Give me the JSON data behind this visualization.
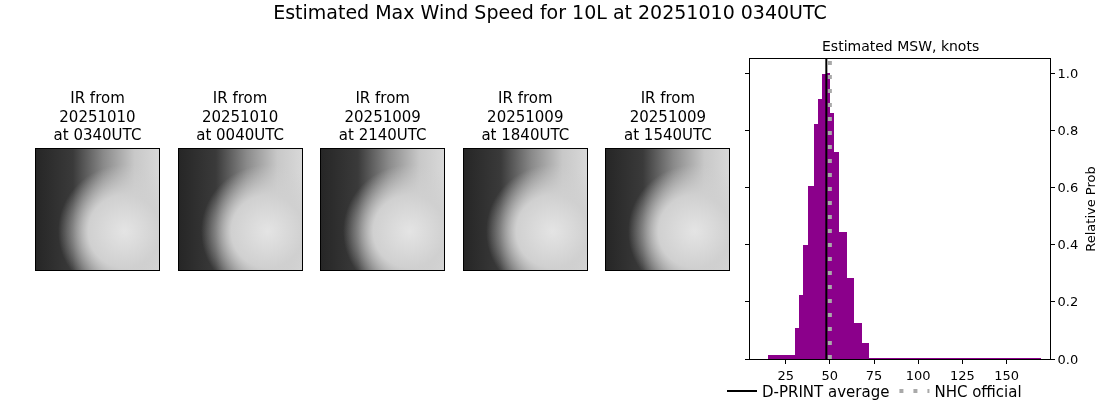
{
  "chart_data": {
    "type": "histogram",
    "title": "Estimated Max Wind Speed for 10L at 20251010 0340UTC",
    "subtitle": "Estimated MSW, knots",
    "ylabel": "Relative Prob",
    "annotations": [
      "IR from\n20251010\nat 0340UTC",
      "IR from\n20251010\nat 0040UTC",
      "IR from\n20251009\nat 2140UTC",
      "IR from\n20251009\nat 1840UTC",
      "IR from\n20251009\nat 1540UTC"
    ],
    "bins": [
      15,
      30.3,
      32.5,
      35,
      37.8,
      41,
      43.3,
      45.8,
      47.8,
      50.1,
      52.4,
      55.2,
      59.5,
      63.7,
      68,
      72.2,
      169.3
    ],
    "values": [
      0.014,
      0.11,
      0.224,
      0.399,
      0.606,
      0.823,
      0.91,
      0.998,
      1.0,
      0.86,
      0.726,
      0.445,
      0.284,
      0.127,
      0.056,
      0.002
    ],
    "color": "#8b008b",
    "xlim": [
      4.8,
      174.6
    ],
    "xticks": [
      25,
      50,
      75,
      100,
      125,
      150
    ],
    "ylim": [
      0,
      1.05
    ],
    "yticks": [
      {
        "value": 0,
        "label": "0.0"
      },
      {
        "value": 0.2,
        "label": "0.2"
      },
      {
        "value": 0.4,
        "label": "0.4"
      },
      {
        "value": 0.6,
        "label": "0.6"
      },
      {
        "value": 0.8,
        "label": "0.8"
      },
      {
        "value": 1.0,
        "label": "1.0"
      }
    ],
    "ref_lines": [
      {
        "axis": "x",
        "value": 48,
        "label": "D-PRINT average",
        "color": "#000000",
        "line_style": "solid"
      },
      {
        "axis": "x",
        "value": 50,
        "label": "NHC official",
        "color": "#a9a9a9",
        "line_style": "dotted"
      }
    ],
    "legend": "bottom"
  }
}
